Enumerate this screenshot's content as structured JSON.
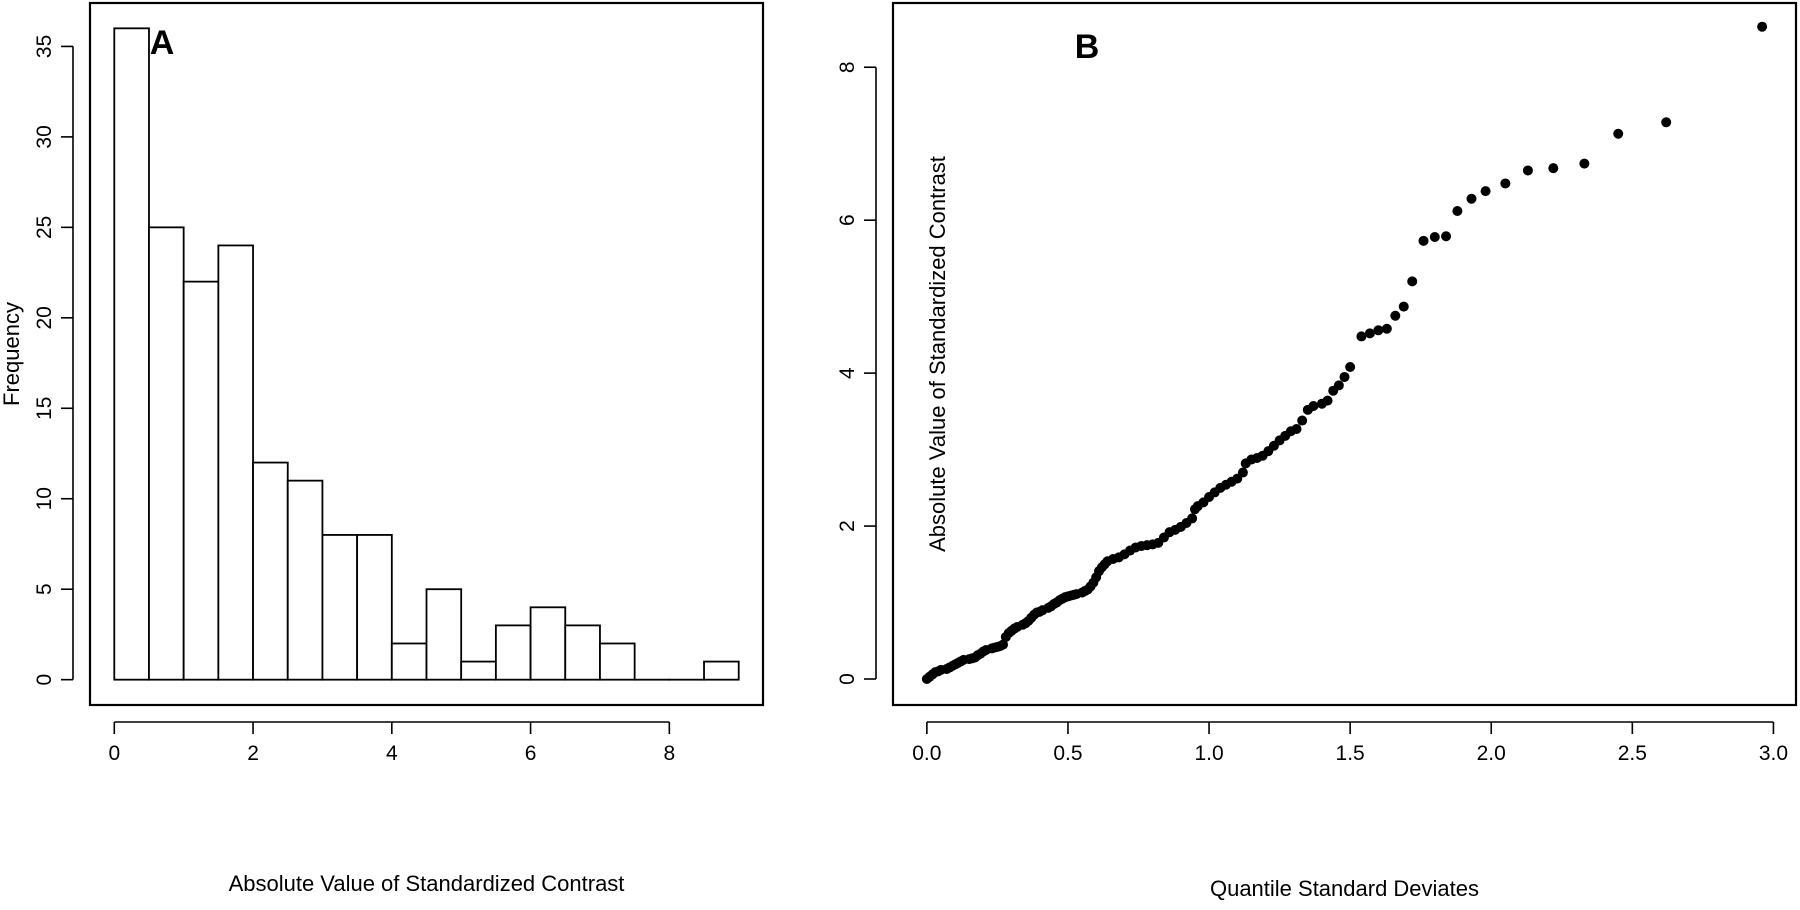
{
  "chart_data": [
    {
      "type": "bar",
      "panel_label": "A",
      "title": "",
      "xlabel": "Absolute Value of Standardized Contrast",
      "ylabel": "Frequency",
      "bin_edges": [
        0,
        0.5,
        1,
        1.5,
        2,
        2.5,
        3,
        3.5,
        4,
        4.5,
        5,
        5.5,
        6,
        6.5,
        7,
        7.5,
        8,
        8.5,
        9
      ],
      "values": [
        36,
        25,
        22,
        24,
        12,
        11,
        8,
        8,
        2,
        5,
        1,
        3,
        4,
        3,
        2,
        0,
        0,
        1
      ],
      "xlim": [
        -0.35,
        9.35
      ],
      "ylim": [
        -1.4,
        37.4
      ],
      "xticks": [
        0,
        2,
        4,
        6,
        8
      ],
      "xtick_labels": [
        "0",
        "2",
        "4",
        "6",
        "8"
      ],
      "yticks": [
        0,
        5,
        10,
        15,
        20,
        25,
        30,
        35
      ],
      "ytick_labels": [
        "0",
        "5",
        "10",
        "15",
        "20",
        "25",
        "30",
        "35"
      ],
      "grid": false,
      "legend": "none"
    },
    {
      "type": "scatter",
      "panel_label": "B",
      "title": "",
      "xlabel": "Quantile Standard Deviates",
      "ylabel": "Absolute Value of Standardized Contrast",
      "xlim": [
        -0.12,
        3.08
      ],
      "ylim": [
        -0.34,
        8.84
      ],
      "xticks": [
        0,
        0.5,
        1,
        1.5,
        2,
        2.5,
        3
      ],
      "xtick_labels": [
        "0.0",
        "0.5",
        "1.0",
        "1.5",
        "2.0",
        "2.5",
        "3.0"
      ],
      "yticks": [
        0,
        2,
        4,
        6,
        8
      ],
      "ytick_labels": [
        "0",
        "2",
        "4",
        "6",
        "8"
      ],
      "grid": false,
      "legend": "none",
      "points": [
        [
          0.0,
          0.0
        ],
        [
          0.01,
          0.03
        ],
        [
          0.02,
          0.06
        ],
        [
          0.03,
          0.09
        ],
        [
          0.04,
          0.1
        ],
        [
          0.05,
          0.12
        ],
        [
          0.07,
          0.13
        ],
        [
          0.08,
          0.15
        ],
        [
          0.09,
          0.17
        ],
        [
          0.1,
          0.19
        ],
        [
          0.11,
          0.21
        ],
        [
          0.12,
          0.23
        ],
        [
          0.13,
          0.25
        ],
        [
          0.15,
          0.26
        ],
        [
          0.16,
          0.27
        ],
        [
          0.17,
          0.28
        ],
        [
          0.18,
          0.31
        ],
        [
          0.19,
          0.33
        ],
        [
          0.2,
          0.36
        ],
        [
          0.21,
          0.38
        ],
        [
          0.23,
          0.4
        ],
        [
          0.24,
          0.41
        ],
        [
          0.25,
          0.42
        ],
        [
          0.26,
          0.43
        ],
        [
          0.27,
          0.45
        ],
        [
          0.28,
          0.55
        ],
        [
          0.29,
          0.6
        ],
        [
          0.3,
          0.63
        ],
        [
          0.31,
          0.66
        ],
        [
          0.32,
          0.68
        ],
        [
          0.34,
          0.71
        ],
        [
          0.35,
          0.73
        ],
        [
          0.36,
          0.76
        ],
        [
          0.37,
          0.8
        ],
        [
          0.38,
          0.84
        ],
        [
          0.39,
          0.87
        ],
        [
          0.4,
          0.88
        ],
        [
          0.41,
          0.9
        ],
        [
          0.43,
          0.93
        ],
        [
          0.44,
          0.95
        ],
        [
          0.45,
          0.98
        ],
        [
          0.46,
          1.0
        ],
        [
          0.47,
          1.03
        ],
        [
          0.48,
          1.05
        ],
        [
          0.49,
          1.07
        ],
        [
          0.5,
          1.08
        ],
        [
          0.51,
          1.09
        ],
        [
          0.52,
          1.1
        ],
        [
          0.53,
          1.11
        ],
        [
          0.55,
          1.13
        ],
        [
          0.56,
          1.15
        ],
        [
          0.57,
          1.17
        ],
        [
          0.58,
          1.21
        ],
        [
          0.59,
          1.26
        ],
        [
          0.6,
          1.33
        ],
        [
          0.61,
          1.41
        ],
        [
          0.62,
          1.46
        ],
        [
          0.63,
          1.5
        ],
        [
          0.64,
          1.54
        ],
        [
          0.66,
          1.57
        ],
        [
          0.68,
          1.59
        ],
        [
          0.7,
          1.63
        ],
        [
          0.72,
          1.68
        ],
        [
          0.74,
          1.72
        ],
        [
          0.76,
          1.74
        ],
        [
          0.78,
          1.75
        ],
        [
          0.8,
          1.76
        ],
        [
          0.82,
          1.78
        ],
        [
          0.84,
          1.85
        ],
        [
          0.86,
          1.92
        ],
        [
          0.88,
          1.95
        ],
        [
          0.9,
          1.99
        ],
        [
          0.92,
          2.04
        ],
        [
          0.94,
          2.1
        ],
        [
          0.95,
          2.22
        ],
        [
          0.96,
          2.26
        ],
        [
          0.98,
          2.31
        ],
        [
          1.0,
          2.38
        ],
        [
          1.02,
          2.44
        ],
        [
          1.04,
          2.5
        ],
        [
          1.06,
          2.54
        ],
        [
          1.08,
          2.58
        ],
        [
          1.1,
          2.62
        ],
        [
          1.12,
          2.7
        ],
        [
          1.13,
          2.82
        ],
        [
          1.15,
          2.87
        ],
        [
          1.17,
          2.89
        ],
        [
          1.19,
          2.92
        ],
        [
          1.21,
          2.98
        ],
        [
          1.23,
          3.05
        ],
        [
          1.25,
          3.12
        ],
        [
          1.27,
          3.18
        ],
        [
          1.29,
          3.24
        ],
        [
          1.31,
          3.27
        ],
        [
          1.33,
          3.38
        ],
        [
          1.35,
          3.52
        ],
        [
          1.37,
          3.57
        ],
        [
          1.4,
          3.6
        ],
        [
          1.42,
          3.64
        ],
        [
          1.44,
          3.77
        ],
        [
          1.46,
          3.84
        ],
        [
          1.48,
          3.95
        ],
        [
          1.5,
          4.08
        ],
        [
          1.54,
          4.48
        ],
        [
          1.57,
          4.52
        ],
        [
          1.6,
          4.56
        ],
        [
          1.63,
          4.58
        ],
        [
          1.66,
          4.75
        ],
        [
          1.69,
          4.87
        ],
        [
          1.72,
          5.2
        ],
        [
          1.76,
          5.73
        ],
        [
          1.8,
          5.78
        ],
        [
          1.84,
          5.79
        ],
        [
          1.88,
          6.12
        ],
        [
          1.93,
          6.28
        ],
        [
          1.98,
          6.38
        ],
        [
          2.05,
          6.48
        ],
        [
          2.13,
          6.65
        ],
        [
          2.22,
          6.68
        ],
        [
          2.33,
          6.74
        ],
        [
          2.45,
          7.13
        ],
        [
          2.62,
          7.28
        ],
        [
          2.96,
          8.53
        ]
      ]
    }
  ]
}
